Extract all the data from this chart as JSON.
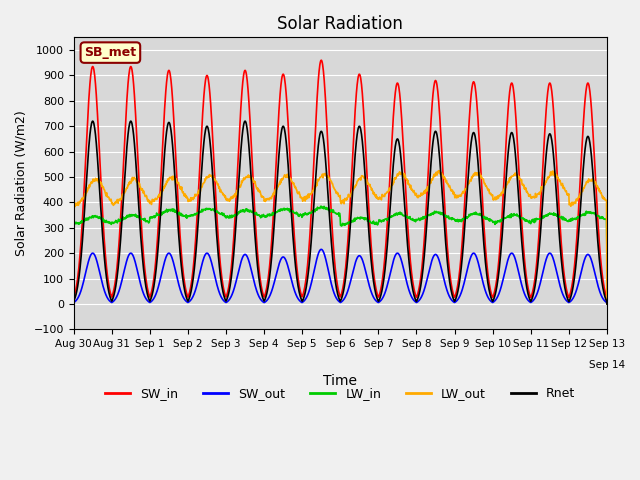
{
  "title": "Solar Radiation",
  "xlabel": "Time",
  "ylabel": "Solar Radiation (W/m2)",
  "ylim": [
    -100,
    1050
  ],
  "xlim": [
    0,
    336
  ],
  "background_color": "#d8d8d8",
  "fig_background": "#f0f0f0",
  "station_label": "SB_met",
  "tick_labels": [
    "Aug 30",
    "Aug 31",
    "Sep 1",
    "Sep 2",
    "Sep 3",
    "Sep 4",
    "Sep 5",
    "Sep 6",
    "Sep 7",
    "Sep 8",
    "Sep 9",
    "Sep 10",
    "Sep 11",
    "Sep 12",
    "Sep 13"
  ],
  "tick_positions": [
    0,
    24,
    48,
    72,
    96,
    120,
    144,
    168,
    192,
    216,
    240,
    264,
    288,
    312,
    336
  ],
  "extra_tick_label": "Sep 14",
  "yticks": [
    -100,
    0,
    100,
    200,
    300,
    400,
    500,
    600,
    700,
    800,
    900,
    1000
  ],
  "SW_in_color": "#ff0000",
  "SW_out_color": "#0000ff",
  "LW_in_color": "#00cc00",
  "LW_out_color": "#ffaa00",
  "Rnet_color": "#000000",
  "grid_color": "#ffffff",
  "linewidth": 1.2,
  "sw_in_peaks": [
    935,
    935,
    920,
    900,
    920,
    905,
    960,
    905,
    870,
    880,
    875,
    870,
    870,
    870
  ],
  "sw_out_peaks": [
    200,
    200,
    200,
    200,
    195,
    185,
    215,
    190,
    200,
    195,
    200,
    200,
    200,
    195
  ],
  "lw_in_base": [
    315,
    320,
    340,
    345,
    340,
    345,
    350,
    310,
    325,
    330,
    325,
    320,
    325,
    330
  ],
  "lw_out_base": [
    390,
    390,
    400,
    405,
    405,
    405,
    410,
    400,
    415,
    420,
    415,
    410,
    415,
    390
  ],
  "rnet_peaks": [
    720,
    720,
    715,
    700,
    720,
    700,
    680,
    700,
    650,
    680,
    675,
    675,
    670,
    660
  ]
}
